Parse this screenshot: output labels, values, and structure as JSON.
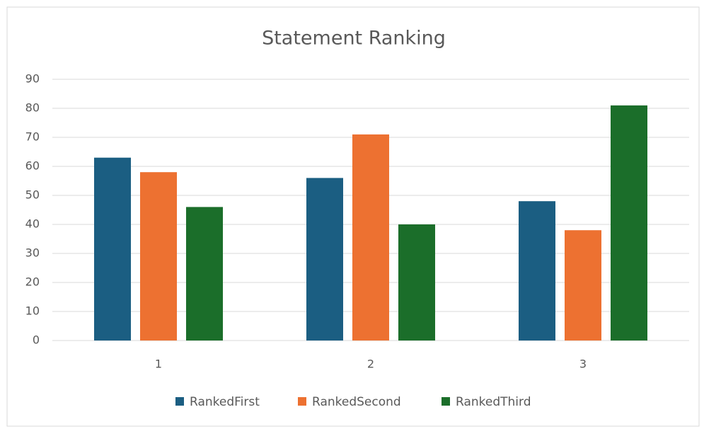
{
  "chart_data": {
    "type": "bar",
    "title": "Statement Ranking",
    "categories": [
      "1",
      "2",
      "3"
    ],
    "series": [
      {
        "name": "RankedFirst",
        "color": "#1b5e82",
        "values": [
          63,
          56,
          48
        ]
      },
      {
        "name": "RankedSecond",
        "color": "#ed7131",
        "values": [
          58,
          71,
          38
        ]
      },
      {
        "name": "RankedThird",
        "color": "#1b6e2a",
        "values": [
          46,
          40,
          81
        ]
      }
    ],
    "ylim": [
      0,
      90
    ],
    "yticks": [
      0,
      10,
      20,
      30,
      40,
      50,
      60,
      70,
      80,
      90
    ],
    "grid": true,
    "legend": "bottom"
  }
}
